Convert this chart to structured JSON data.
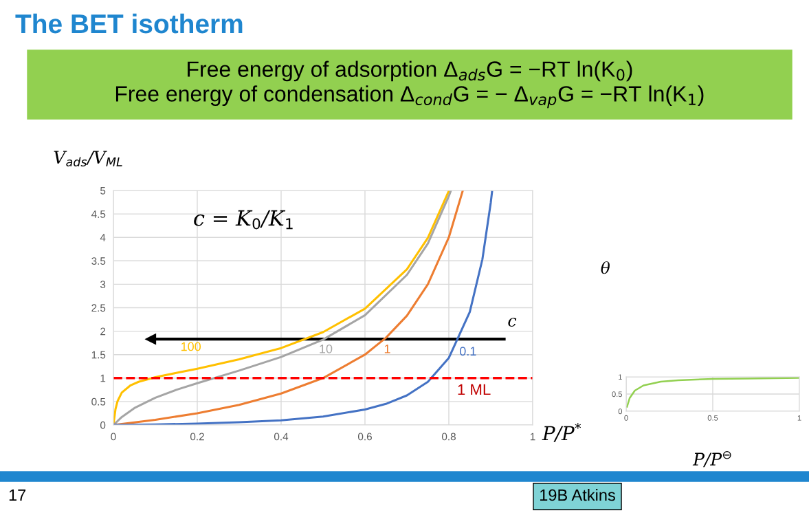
{
  "chart_data": [
    {
      "type": "line",
      "title": "The BET isotherm",
      "subtitle": "Free energy of adsorption Δ$_{ads}$G = −RT ln(K$_{0}$)\nFree energy of condensation Δ$_{cond}$G = − Δ$_{vap}$G = −RT ln(K$_{1}$)",
      "xlabel": "P/P$^{*}$",
      "ylabel": "V$_{ads}$/V$_{ML}$",
      "xlim": [
        0,
        1
      ],
      "ylim": [
        0,
        5
      ],
      "xticks": [
        0,
        0.2,
        0.4,
        0.6,
        0.8,
        1
      ],
      "yticks": [
        0,
        0.5,
        1,
        1.5,
        2,
        2.5,
        3,
        3.5,
        4,
        4.5,
        5
      ],
      "grid": true,
      "legend": false,
      "marker": "none",
      "line_style": "solid",
      "series": [
        {
          "name": "100",
          "color": "#ffc000",
          "x": [
            0,
            0.005,
            0.01,
            0.02,
            0.04,
            0.06,
            0.1,
            0.15,
            0.2,
            0.3,
            0.4,
            0.5,
            0.6,
            0.7,
            0.75,
            0.8
          ],
          "values": [
            0,
            0.34,
            0.51,
            0.69,
            0.84,
            0.92,
            1.02,
            1.11,
            1.2,
            1.4,
            1.64,
            1.98,
            2.48,
            3.32,
            3.99,
            4.99
          ]
        },
        {
          "name": "10",
          "color": "#a5a5a5",
          "x": [
            0,
            0.02,
            0.05,
            0.1,
            0.15,
            0.2,
            0.3,
            0.4,
            0.5,
            0.6,
            0.7,
            0.75,
            0.8,
            0.805
          ],
          "values": [
            0,
            0.17,
            0.36,
            0.58,
            0.75,
            0.89,
            1.16,
            1.45,
            1.82,
            2.34,
            3.2,
            3.87,
            4.88,
            5.0
          ]
        },
        {
          "name": "1",
          "color": "#ed7d31",
          "x": [
            0,
            0.1,
            0.2,
            0.3,
            0.4,
            0.5,
            0.6,
            0.65,
            0.7,
            0.75,
            0.8,
            0.833
          ],
          "values": [
            0,
            0.11,
            0.25,
            0.43,
            0.67,
            1.0,
            1.5,
            1.86,
            2.33,
            3.0,
            4.0,
            4.99
          ]
        },
        {
          "name": "0.1",
          "color": "#4472c4",
          "x": [
            0,
            0.1,
            0.2,
            0.3,
            0.4,
            0.5,
            0.6,
            0.65,
            0.7,
            0.75,
            0.8,
            0.85,
            0.88,
            0.9,
            0.903
          ],
          "values": [
            0,
            0.01,
            0.03,
            0.06,
            0.1,
            0.18,
            0.33,
            0.45,
            0.63,
            0.92,
            1.43,
            2.41,
            3.53,
            4.74,
            4.97
          ]
        }
      ],
      "ref_lines": [
        {
          "axis": "y",
          "value": 1,
          "label": "1 ML",
          "color": "#ff0000",
          "line_style": "dashed"
        }
      ],
      "annotations": [
        "c = K$_{0}$/K$_{1}$",
        "c",
        "17",
        "19B Atkins"
      ]
    },
    {
      "type": "line",
      "xlabel": "P/P$^{⊖}$",
      "ylabel": "θ",
      "xlim": [
        0,
        1
      ],
      "ylim": [
        0,
        1
      ],
      "xticks": [
        0,
        0.5,
        1
      ],
      "yticks": [
        0,
        0.5,
        1
      ],
      "grid": true,
      "legend": false,
      "marker": "none",
      "line_style": "solid",
      "series": [
        {
          "color": "#92d050",
          "x": [
            0.005,
            0.02,
            0.05,
            0.1,
            0.2,
            0.3,
            0.5,
            0.7,
            1
          ],
          "values": [
            0.13,
            0.38,
            0.6,
            0.75,
            0.86,
            0.9,
            0.94,
            0.95,
            0.97
          ]
        }
      ]
    }
  ]
}
